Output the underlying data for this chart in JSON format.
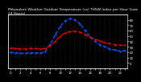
{
  "title": "Milwaukee Weather Outdoor Temperature (vs) THSW Index per Hour (Last 24 Hours)",
  "bg_color": "#000000",
  "plot_bg_color": "#000000",
  "grid_color": "#555555",
  "temp_color": "#dd0000",
  "thsw_color": "#0055ff",
  "hours": [
    0,
    1,
    2,
    3,
    4,
    5,
    6,
    7,
    8,
    9,
    10,
    11,
    12,
    13,
    14,
    15,
    16,
    17,
    18,
    19,
    20,
    21,
    22,
    23
  ],
  "temp_values": [
    28,
    27,
    26,
    26,
    27,
    27,
    26,
    27,
    32,
    40,
    50,
    56,
    58,
    59,
    57,
    52,
    48,
    44,
    41,
    38,
    36,
    34,
    33,
    33
  ],
  "thsw_values": [
    20,
    19,
    18,
    18,
    19,
    19,
    18,
    22,
    35,
    52,
    68,
    78,
    82,
    80,
    72,
    60,
    48,
    40,
    34,
    30,
    26,
    24,
    22,
    23
  ],
  "ylim": [
    -10,
    90
  ],
  "ytick_values": [
    0,
    10,
    20,
    30,
    40,
    50,
    60,
    70,
    80
  ],
  "ytick_labels": [
    "0",
    "10",
    "20",
    "30",
    "40",
    "50",
    "60",
    "70",
    "80"
  ],
  "title_fontsize": 3.2,
  "tick_fontsize": 2.8,
  "line_width": 1.0,
  "marker_size": 1.5
}
